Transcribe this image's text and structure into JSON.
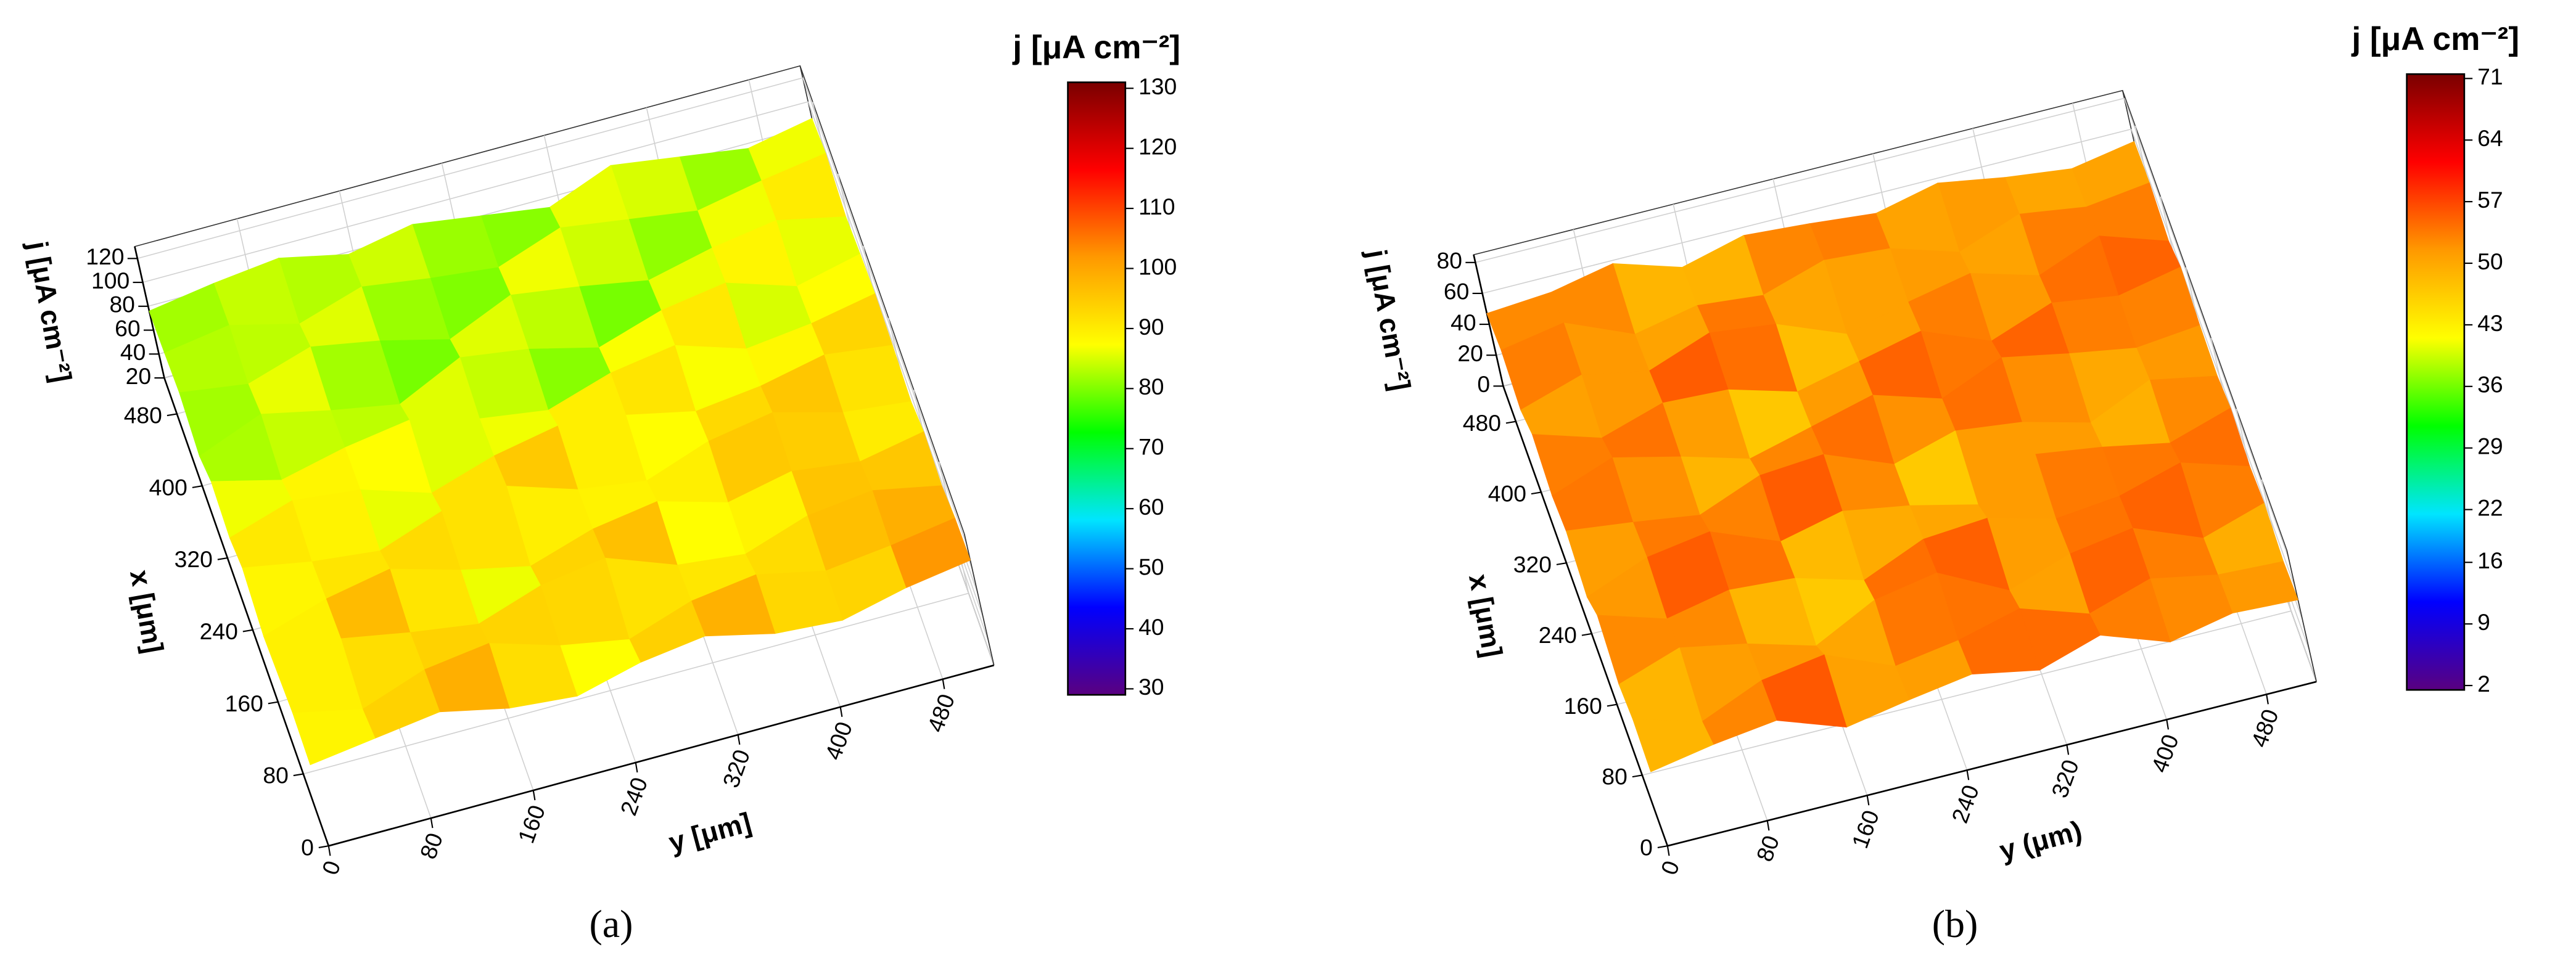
{
  "chart_data": [
    {
      "type": "surface",
      "panel_label": "(a)",
      "xlabel": "x [μm]",
      "ylabel": "y [μm]",
      "zlabel": "j [μA cm⁻²]",
      "xlim": [
        0,
        520
      ],
      "xticks": [
        0,
        80,
        160,
        240,
        320,
        400,
        480
      ],
      "ylim": [
        0,
        520
      ],
      "yticks": [
        0,
        80,
        160,
        240,
        320,
        400,
        480
      ],
      "zlim": [
        20,
        130
      ],
      "zticks": [
        20,
        40,
        60,
        80,
        100,
        120
      ],
      "grid": true,
      "colormap": [
        "#5a0080",
        "#0000ff",
        "#00e5ff",
        "#00ff00",
        "#ffff00",
        "#ff9900",
        "#ff0000",
        "#7a0000"
      ],
      "colorbar": {
        "title": "j [μA cm⁻²]",
        "lim": [
          29,
          131
        ],
        "ticks": [
          30,
          40,
          50,
          60,
          70,
          80,
          90,
          100,
          110,
          120,
          130
        ]
      },
      "x": [
        0,
        52,
        104,
        156,
        208,
        260,
        312,
        364,
        416,
        468,
        520
      ],
      "y": [
        0,
        52,
        104,
        156,
        208,
        260,
        312,
        364,
        416,
        468,
        520
      ],
      "z": [
        [
          88,
          95,
          102,
          90,
          85,
          98,
          105,
          92,
          88,
          100,
          108
        ],
        [
          92,
          80,
          98,
          105,
          88,
          78,
          95,
          102,
          90,
          96,
          104
        ],
        [
          85,
          100,
          90,
          82,
          99,
          107,
          86,
          80,
          97,
          103,
          92
        ],
        [
          78,
          94,
          104,
          88,
          76,
          92,
          100,
          84,
          95,
          88,
          98
        ],
        [
          96,
          86,
          80,
          98,
          104,
          86,
          78,
          96,
          105,
          90,
          84
        ],
        [
          82,
          98,
          92,
          74,
          90,
          100,
          94,
          82,
          88,
          99,
          92
        ],
        [
          90,
          76,
          88,
          96,
          82,
          74,
          90,
          98,
          80,
          86,
          96
        ],
        [
          72,
          92,
          80,
          70,
          94,
          86,
          72,
          88,
          96,
          78,
          90
        ],
        [
          86,
          78,
          94,
          84,
          70,
          92,
          84,
          74,
          86,
          94,
          82
        ],
        [
          80,
          88,
          74,
          90,
          82,
          76,
          94,
          86,
          78,
          88,
          96
        ],
        [
          76,
          84,
          90,
          78,
          88,
          80,
          72,
          92,
          84,
          76,
          86
        ]
      ]
    },
    {
      "type": "surface",
      "panel_label": "(b)",
      "xlabel": "x [μm]",
      "ylabel": "y (μm)",
      "zlabel": "j [μA cm⁻²]",
      "xlim": [
        0,
        520
      ],
      "xticks": [
        0,
        80,
        160,
        240,
        320,
        400,
        480
      ],
      "ylim": [
        0,
        520
      ],
      "yticks": [
        0,
        80,
        160,
        240,
        320,
        400,
        480
      ],
      "zlim": [
        0,
        85
      ],
      "zticks": [
        0,
        20,
        40,
        60,
        80
      ],
      "grid": true,
      "colormap": [
        "#5a0080",
        "#0000ff",
        "#00e5ff",
        "#00ff00",
        "#ffff00",
        "#ff9900",
        "#ff0000",
        "#7a0000"
      ],
      "colorbar": {
        "title": "j [μA cm⁻²]",
        "lim": [
          1.5,
          71.5
        ],
        "ticks": [
          2,
          9,
          16,
          22,
          29,
          36,
          43,
          50,
          57,
          64,
          71
        ]
      },
      "x": [
        0,
        52,
        104,
        156,
        208,
        260,
        312,
        364,
        416,
        468,
        520
      ],
      "y": [
        0,
        52,
        104,
        156,
        208,
        260,
        312,
        364,
        416,
        468,
        520
      ],
      "z": [
        [
          48,
          55,
          60,
          45,
          52,
          58,
          50,
          62,
          47,
          55,
          53
        ],
        [
          52,
          40,
          56,
          62,
          44,
          50,
          60,
          46,
          58,
          50,
          48
        ],
        [
          45,
          58,
          50,
          38,
          57,
          64,
          42,
          55,
          61,
          44,
          56
        ],
        [
          60,
          47,
          55,
          52,
          40,
          56,
          59,
          48,
          52,
          63,
          50
        ],
        [
          42,
          57,
          63,
          46,
          55,
          48,
          38,
          60,
          54,
          46,
          58
        ],
        [
          55,
          50,
          44,
          59,
          62,
          45,
          56,
          51,
          40,
          57,
          49
        ],
        [
          48,
          62,
          52,
          40,
          50,
          60,
          47,
          63,
          55,
          48,
          52
        ],
        [
          58,
          45,
          57,
          55,
          43,
          52,
          61,
          44,
          58,
          52,
          60
        ],
        [
          44,
          56,
          48,
          62,
          57,
          40,
          50,
          58,
          46,
          61,
          47
        ],
        [
          53,
          60,
          42,
          50,
          46,
          58,
          55,
          42,
          56,
          50,
          55
        ],
        [
          47,
          50,
          58,
          45,
          55,
          52,
          48,
          57,
          50,
          45,
          52
        ]
      ]
    }
  ]
}
